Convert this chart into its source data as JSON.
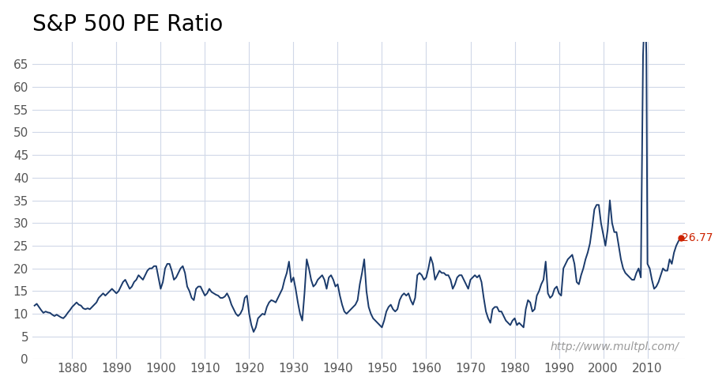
{
  "title": "S&P 500 PE Ratio",
  "background_color": "#ffffff",
  "plot_bg_color": "#ffffff",
  "grid_color": "#d0d8e8",
  "line_color": "#1a3a6b",
  "line_width": 1.4,
  "dot_color": "#cc2200",
  "dot_label": "26.77",
  "watermark": "http://www.multpl.com/",
  "title_fontsize": 20,
  "tick_fontsize": 11,
  "watermark_fontsize": 10,
  "xlim": [
    1871,
    2018.5
  ],
  "ylim": [
    0,
    70
  ],
  "yticks": [
    0,
    5,
    10,
    15,
    20,
    25,
    30,
    35,
    40,
    45,
    50,
    55,
    60,
    65
  ],
  "xticks": [
    1880,
    1890,
    1900,
    1910,
    1920,
    1930,
    1940,
    1950,
    1960,
    1970,
    1980,
    1990,
    2000,
    2010
  ],
  "data": [
    [
      1871.5,
      11.8
    ],
    [
      1872.0,
      12.2
    ],
    [
      1872.5,
      11.5
    ],
    [
      1873.0,
      10.8
    ],
    [
      1873.5,
      10.2
    ],
    [
      1874.0,
      10.5
    ],
    [
      1874.5,
      10.3
    ],
    [
      1875.0,
      10.2
    ],
    [
      1875.5,
      9.8
    ],
    [
      1876.0,
      9.5
    ],
    [
      1876.5,
      9.8
    ],
    [
      1877.0,
      9.5
    ],
    [
      1877.5,
      9.2
    ],
    [
      1878.0,
      9.0
    ],
    [
      1878.5,
      9.5
    ],
    [
      1879.0,
      10.2
    ],
    [
      1879.5,
      10.8
    ],
    [
      1880.0,
      11.5
    ],
    [
      1880.5,
      12.0
    ],
    [
      1881.0,
      12.5
    ],
    [
      1881.5,
      12.0
    ],
    [
      1882.0,
      11.8
    ],
    [
      1882.5,
      11.2
    ],
    [
      1883.0,
      11.0
    ],
    [
      1883.5,
      11.2
    ],
    [
      1884.0,
      11.0
    ],
    [
      1884.5,
      11.5
    ],
    [
      1885.0,
      12.0
    ],
    [
      1885.5,
      12.5
    ],
    [
      1886.0,
      13.5
    ],
    [
      1886.5,
      14.0
    ],
    [
      1887.0,
      14.5
    ],
    [
      1887.5,
      14.0
    ],
    [
      1888.0,
      14.5
    ],
    [
      1888.5,
      15.0
    ],
    [
      1889.0,
      15.5
    ],
    [
      1889.5,
      15.0
    ],
    [
      1890.0,
      14.5
    ],
    [
      1890.5,
      15.0
    ],
    [
      1891.0,
      16.0
    ],
    [
      1891.5,
      17.0
    ],
    [
      1892.0,
      17.5
    ],
    [
      1892.5,
      16.5
    ],
    [
      1893.0,
      15.5
    ],
    [
      1893.5,
      16.0
    ],
    [
      1894.0,
      17.0
    ],
    [
      1894.5,
      17.5
    ],
    [
      1895.0,
      18.5
    ],
    [
      1895.5,
      18.0
    ],
    [
      1896.0,
      17.5
    ],
    [
      1896.5,
      18.5
    ],
    [
      1897.0,
      19.5
    ],
    [
      1897.5,
      20.0
    ],
    [
      1898.0,
      20.0
    ],
    [
      1898.5,
      20.5
    ],
    [
      1899.0,
      20.5
    ],
    [
      1899.5,
      18.0
    ],
    [
      1900.0,
      15.5
    ],
    [
      1900.5,
      17.0
    ],
    [
      1901.0,
      20.0
    ],
    [
      1901.5,
      21.0
    ],
    [
      1902.0,
      21.0
    ],
    [
      1902.5,
      19.5
    ],
    [
      1903.0,
      17.5
    ],
    [
      1903.5,
      18.0
    ],
    [
      1904.0,
      19.0
    ],
    [
      1904.5,
      20.0
    ],
    [
      1905.0,
      20.5
    ],
    [
      1905.5,
      19.0
    ],
    [
      1906.0,
      16.0
    ],
    [
      1906.5,
      15.0
    ],
    [
      1907.0,
      13.5
    ],
    [
      1907.5,
      13.0
    ],
    [
      1908.0,
      15.5
    ],
    [
      1908.5,
      16.0
    ],
    [
      1909.0,
      16.0
    ],
    [
      1909.5,
      15.0
    ],
    [
      1910.0,
      14.0
    ],
    [
      1910.5,
      14.5
    ],
    [
      1911.0,
      15.5
    ],
    [
      1911.5,
      14.8
    ],
    [
      1912.0,
      14.5
    ],
    [
      1912.5,
      14.2
    ],
    [
      1913.0,
      14.0
    ],
    [
      1913.5,
      13.5
    ],
    [
      1914.0,
      13.5
    ],
    [
      1914.5,
      13.8
    ],
    [
      1915.0,
      14.5
    ],
    [
      1915.5,
      13.5
    ],
    [
      1916.0,
      12.0
    ],
    [
      1916.5,
      11.0
    ],
    [
      1917.0,
      10.0
    ],
    [
      1917.5,
      9.5
    ],
    [
      1918.0,
      10.0
    ],
    [
      1918.5,
      11.0
    ],
    [
      1919.0,
      13.5
    ],
    [
      1919.5,
      14.0
    ],
    [
      1920.0,
      10.0
    ],
    [
      1920.5,
      7.5
    ],
    [
      1921.0,
      6.0
    ],
    [
      1921.5,
      7.0
    ],
    [
      1922.0,
      9.0
    ],
    [
      1922.5,
      9.5
    ],
    [
      1923.0,
      10.0
    ],
    [
      1923.5,
      9.8
    ],
    [
      1924.0,
      11.5
    ],
    [
      1924.5,
      12.5
    ],
    [
      1925.0,
      13.0
    ],
    [
      1925.5,
      12.8
    ],
    [
      1926.0,
      12.5
    ],
    [
      1926.5,
      13.5
    ],
    [
      1927.0,
      14.5
    ],
    [
      1927.5,
      15.5
    ],
    [
      1928.0,
      17.5
    ],
    [
      1928.5,
      19.0
    ],
    [
      1929.0,
      21.5
    ],
    [
      1929.5,
      17.0
    ],
    [
      1930.0,
      18.0
    ],
    [
      1930.5,
      15.5
    ],
    [
      1931.0,
      12.5
    ],
    [
      1931.5,
      10.0
    ],
    [
      1932.0,
      8.5
    ],
    [
      1932.5,
      14.5
    ],
    [
      1933.0,
      22.0
    ],
    [
      1933.5,
      20.0
    ],
    [
      1934.0,
      17.5
    ],
    [
      1934.5,
      16.0
    ],
    [
      1935.0,
      16.5
    ],
    [
      1935.5,
      17.5
    ],
    [
      1936.0,
      18.0
    ],
    [
      1936.5,
      18.5
    ],
    [
      1937.0,
      17.5
    ],
    [
      1937.5,
      15.5
    ],
    [
      1938.0,
      18.0
    ],
    [
      1938.5,
      18.5
    ],
    [
      1939.0,
      17.5
    ],
    [
      1939.5,
      16.0
    ],
    [
      1940.0,
      16.5
    ],
    [
      1940.5,
      14.0
    ],
    [
      1941.0,
      12.0
    ],
    [
      1941.5,
      10.5
    ],
    [
      1942.0,
      10.0
    ],
    [
      1942.5,
      10.5
    ],
    [
      1943.0,
      11.0
    ],
    [
      1943.5,
      11.5
    ],
    [
      1944.0,
      12.0
    ],
    [
      1944.5,
      13.0
    ],
    [
      1945.0,
      16.5
    ],
    [
      1945.5,
      19.0
    ],
    [
      1946.0,
      22.0
    ],
    [
      1946.5,
      15.0
    ],
    [
      1947.0,
      11.5
    ],
    [
      1947.5,
      10.0
    ],
    [
      1948.0,
      9.0
    ],
    [
      1948.5,
      8.5
    ],
    [
      1949.0,
      8.0
    ],
    [
      1949.5,
      7.5
    ],
    [
      1950.0,
      7.0
    ],
    [
      1950.5,
      8.5
    ],
    [
      1951.0,
      10.5
    ],
    [
      1951.5,
      11.5
    ],
    [
      1952.0,
      12.0
    ],
    [
      1952.5,
      11.0
    ],
    [
      1953.0,
      10.5
    ],
    [
      1953.5,
      11.0
    ],
    [
      1954.0,
      13.0
    ],
    [
      1954.5,
      14.0
    ],
    [
      1955.0,
      14.5
    ],
    [
      1955.5,
      14.0
    ],
    [
      1956.0,
      14.5
    ],
    [
      1956.5,
      13.0
    ],
    [
      1957.0,
      12.0
    ],
    [
      1957.5,
      13.5
    ],
    [
      1958.0,
      18.5
    ],
    [
      1958.5,
      19.0
    ],
    [
      1959.0,
      18.5
    ],
    [
      1959.5,
      17.5
    ],
    [
      1960.0,
      18.0
    ],
    [
      1960.5,
      20.0
    ],
    [
      1961.0,
      22.5
    ],
    [
      1961.5,
      21.0
    ],
    [
      1962.0,
      17.5
    ],
    [
      1962.5,
      18.5
    ],
    [
      1963.0,
      19.5
    ],
    [
      1963.5,
      19.0
    ],
    [
      1964.0,
      19.0
    ],
    [
      1964.5,
      18.5
    ],
    [
      1965.0,
      18.5
    ],
    [
      1965.5,
      17.5
    ],
    [
      1966.0,
      15.5
    ],
    [
      1966.5,
      16.5
    ],
    [
      1967.0,
      18.0
    ],
    [
      1967.5,
      18.5
    ],
    [
      1968.0,
      18.5
    ],
    [
      1968.5,
      17.5
    ],
    [
      1969.0,
      16.5
    ],
    [
      1969.5,
      15.5
    ],
    [
      1970.0,
      17.5
    ],
    [
      1970.5,
      18.0
    ],
    [
      1971.0,
      18.5
    ],
    [
      1971.5,
      18.0
    ],
    [
      1972.0,
      18.5
    ],
    [
      1972.5,
      17.0
    ],
    [
      1973.0,
      13.5
    ],
    [
      1973.5,
      10.5
    ],
    [
      1974.0,
      9.0
    ],
    [
      1974.5,
      8.0
    ],
    [
      1975.0,
      11.0
    ],
    [
      1975.5,
      11.5
    ],
    [
      1976.0,
      11.5
    ],
    [
      1976.5,
      10.5
    ],
    [
      1977.0,
      10.5
    ],
    [
      1977.5,
      9.5
    ],
    [
      1978.0,
      8.5
    ],
    [
      1978.5,
      8.0
    ],
    [
      1979.0,
      7.5
    ],
    [
      1979.5,
      8.5
    ],
    [
      1980.0,
      9.0
    ],
    [
      1980.5,
      7.5
    ],
    [
      1981.0,
      8.0
    ],
    [
      1981.5,
      7.5
    ],
    [
      1982.0,
      7.0
    ],
    [
      1982.5,
      11.0
    ],
    [
      1983.0,
      13.0
    ],
    [
      1983.5,
      12.5
    ],
    [
      1984.0,
      10.5
    ],
    [
      1984.5,
      11.0
    ],
    [
      1985.0,
      14.0
    ],
    [
      1985.5,
      15.0
    ],
    [
      1986.0,
      16.5
    ],
    [
      1986.5,
      17.5
    ],
    [
      1987.0,
      21.5
    ],
    [
      1987.5,
      14.5
    ],
    [
      1988.0,
      13.5
    ],
    [
      1988.5,
      14.0
    ],
    [
      1989.0,
      15.5
    ],
    [
      1989.5,
      16.0
    ],
    [
      1990.0,
      14.5
    ],
    [
      1990.5,
      14.0
    ],
    [
      1991.0,
      20.0
    ],
    [
      1991.5,
      21.0
    ],
    [
      1992.0,
      22.0
    ],
    [
      1992.5,
      22.5
    ],
    [
      1993.0,
      23.0
    ],
    [
      1993.5,
      21.0
    ],
    [
      1994.0,
      17.0
    ],
    [
      1994.5,
      16.5
    ],
    [
      1995.0,
      18.5
    ],
    [
      1995.5,
      20.0
    ],
    [
      1996.0,
      22.0
    ],
    [
      1996.5,
      23.5
    ],
    [
      1997.0,
      25.5
    ],
    [
      1997.5,
      29.0
    ],
    [
      1998.0,
      33.0
    ],
    [
      1998.5,
      34.0
    ],
    [
      1999.0,
      34.0
    ],
    [
      1999.5,
      30.0
    ],
    [
      2000.0,
      27.5
    ],
    [
      2000.5,
      25.0
    ],
    [
      2001.0,
      28.5
    ],
    [
      2001.5,
      35.0
    ],
    [
      2002.0,
      30.0
    ],
    [
      2002.5,
      28.0
    ],
    [
      2003.0,
      28.0
    ],
    [
      2003.5,
      25.0
    ],
    [
      2004.0,
      22.0
    ],
    [
      2004.5,
      20.0
    ],
    [
      2005.0,
      19.0
    ],
    [
      2005.5,
      18.5
    ],
    [
      2006.0,
      18.0
    ],
    [
      2006.5,
      17.5
    ],
    [
      2007.0,
      17.5
    ],
    [
      2007.5,
      19.0
    ],
    [
      2008.0,
      20.0
    ],
    [
      2008.5,
      18.0
    ],
    [
      2009.0,
      67.0
    ],
    [
      2009.5,
      80.0
    ],
    [
      2009.75,
      67.0
    ],
    [
      2010.0,
      21.0
    ],
    [
      2010.5,
      20.0
    ],
    [
      2011.0,
      17.5
    ],
    [
      2011.5,
      15.5
    ],
    [
      2012.0,
      16.0
    ],
    [
      2012.5,
      17.0
    ],
    [
      2013.0,
      18.5
    ],
    [
      2013.5,
      20.0
    ],
    [
      2014.0,
      19.5
    ],
    [
      2014.5,
      19.5
    ],
    [
      2015.0,
      22.0
    ],
    [
      2015.5,
      21.0
    ],
    [
      2016.0,
      23.5
    ],
    [
      2016.5,
      25.0
    ],
    [
      2017.0,
      26.0
    ],
    [
      2017.5,
      26.77
    ]
  ]
}
